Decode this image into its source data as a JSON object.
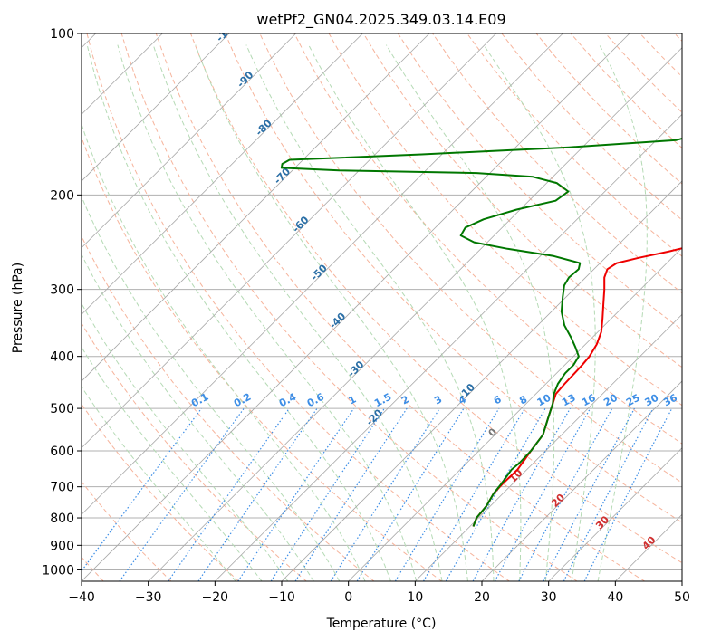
{
  "chart_data": {
    "type": "skew-t",
    "title": "wetPf2_GN04.2025.349.03.14.E09",
    "xlabel": "Temperature (°C)",
    "ylabel": "Pressure (hPa)",
    "xlim": [
      -40,
      50
    ],
    "ylim": [
      1050,
      100
    ],
    "x_ticks": [
      -40,
      -30,
      -20,
      -10,
      0,
      10,
      20,
      30,
      40,
      50
    ],
    "x_tick_labels": [
      "−40",
      "−30",
      "−20",
      "−10",
      "0",
      "10",
      "20",
      "30",
      "40",
      "50"
    ],
    "y_ticks": [
      100,
      200,
      300,
      400,
      500,
      600,
      700,
      800,
      900,
      1000
    ],
    "y_tick_labels": [
      "100",
      "200",
      "300",
      "400",
      "500",
      "600",
      "700",
      "800",
      "900",
      "1000"
    ],
    "grid": true,
    "isotherm_labels": [
      {
        "t": -100,
        "label": "-100"
      },
      {
        "t": -90,
        "label": "-90"
      },
      {
        "t": -80,
        "label": "-80"
      },
      {
        "t": -70,
        "label": "-70"
      },
      {
        "t": -60,
        "label": "-60"
      },
      {
        "t": -50,
        "label": "-50"
      },
      {
        "t": -40,
        "label": "-40"
      },
      {
        "t": -30,
        "label": "-30"
      },
      {
        "t": -20,
        "label": "-20"
      },
      {
        "t": -10,
        "label": "-10"
      },
      {
        "t": 0,
        "label": "0"
      },
      {
        "t": 10,
        "label": "10"
      },
      {
        "t": 20,
        "label": "20"
      },
      {
        "t": 30,
        "label": "30"
      },
      {
        "t": 40,
        "label": "40"
      }
    ],
    "mixing_ratio_labels": [
      "0.1",
      "0.2",
      "0.4",
      "0.6",
      "1",
      "1.5",
      "2",
      "3",
      "4",
      "6",
      "8",
      "10",
      "13",
      "16",
      "20",
      "25",
      "30",
      "36"
    ],
    "mixing_ratios": [
      0.1,
      0.2,
      0.4,
      0.6,
      1,
      1.5,
      2,
      3,
      4,
      6,
      8,
      10,
      13,
      16,
      20,
      25,
      30,
      36
    ],
    "series": [
      {
        "name": "Temperature",
        "color": "#ee0000",
        "points": [
          [
            830,
            10.5
          ],
          [
            800,
            9.7
          ],
          [
            760,
            9.4
          ],
          [
            720,
            8.6
          ],
          [
            690,
            8.5
          ],
          [
            650,
            8.6
          ],
          [
            630,
            8.3
          ],
          [
            600,
            7.8
          ],
          [
            560,
            7.2
          ],
          [
            520,
            5.4
          ],
          [
            490,
            4.0
          ],
          [
            470,
            3.0
          ],
          [
            450,
            2.8
          ],
          [
            430,
            2.7
          ],
          [
            415,
            2.6
          ],
          [
            400,
            2.4
          ],
          [
            380,
            1.7
          ],
          [
            360,
            0.5
          ],
          [
            340,
            -1.3
          ],
          [
            320,
            -3.3
          ],
          [
            300,
            -5.4
          ],
          [
            285,
            -7.2
          ],
          [
            275,
            -8.0
          ],
          [
            268,
            -7.5
          ],
          [
            262,
            -5.0
          ],
          [
            255,
            -1.5
          ],
          [
            247,
            2.0
          ],
          [
            237,
            5.5
          ],
          [
            225,
            8.5
          ],
          [
            210,
            10.3
          ],
          [
            200,
            11.6
          ],
          [
            190,
            13.5
          ],
          [
            180,
            15.6
          ],
          [
            172,
            17.0
          ],
          [
            165,
            19.0
          ],
          [
            160,
            20.5
          ],
          [
            152,
            21.0
          ],
          [
            145,
            21.5
          ],
          [
            138,
            22.0
          ],
          [
            130,
            23.5
          ],
          [
            122,
            24.5
          ],
          [
            113,
            25.5
          ],
          [
            108,
            26.5
          ],
          [
            104,
            27.0
          ],
          [
            100,
            27.0
          ]
        ]
      },
      {
        "name": "Dewpoint",
        "color": "#007700",
        "points": [
          [
            830,
            10.5
          ],
          [
            800,
            9.7
          ],
          [
            760,
            9.4
          ],
          [
            720,
            8.6
          ],
          [
            690,
            8.3
          ],
          [
            650,
            7.7
          ],
          [
            630,
            7.9
          ],
          [
            600,
            7.8
          ],
          [
            560,
            7.2
          ],
          [
            520,
            5.4
          ],
          [
            490,
            4.0
          ],
          [
            470,
            2.7
          ],
          [
            450,
            1.8
          ],
          [
            430,
            1.3
          ],
          [
            415,
            1.3
          ],
          [
            400,
            0.8
          ],
          [
            385,
            -1.0
          ],
          [
            370,
            -3.0
          ],
          [
            350,
            -6.0
          ],
          [
            330,
            -8.5
          ],
          [
            310,
            -10.5
          ],
          [
            295,
            -12.0
          ],
          [
            285,
            -12.5
          ],
          [
            275,
            -12.3
          ],
          [
            268,
            -13.0
          ],
          [
            260,
            -18.0
          ],
          [
            252,
            -26.0
          ],
          [
            245,
            -32.0
          ],
          [
            238,
            -35.0
          ],
          [
            230,
            -35.5
          ],
          [
            222,
            -34.0
          ],
          [
            213,
            -30.5
          ],
          [
            205,
            -26.0
          ],
          [
            197,
            -25.5
          ],
          [
            190,
            -28.5
          ],
          [
            185,
            -33.0
          ],
          [
            182,
            -42.0
          ],
          [
            180,
            -63.0
          ],
          [
            178,
            -72.0
          ],
          [
            175,
            -72.5
          ],
          [
            172,
            -72.0
          ],
          [
            168,
            -53.0
          ],
          [
            163,
            -32.0
          ],
          [
            158,
            -17.0
          ],
          [
            153,
            -14.0
          ],
          [
            148,
            -13.0
          ],
          [
            143,
            -15.5
          ],
          [
            138,
            -19.0
          ],
          [
            133,
            -19.0
          ],
          [
            128,
            -16.5
          ],
          [
            123,
            -14.5
          ],
          [
            118,
            -11.5
          ],
          [
            113,
            -9.0
          ],
          [
            108,
            -8.0
          ],
          [
            104,
            -7.0
          ],
          [
            100,
            -5.5
          ]
        ]
      }
    ]
  }
}
